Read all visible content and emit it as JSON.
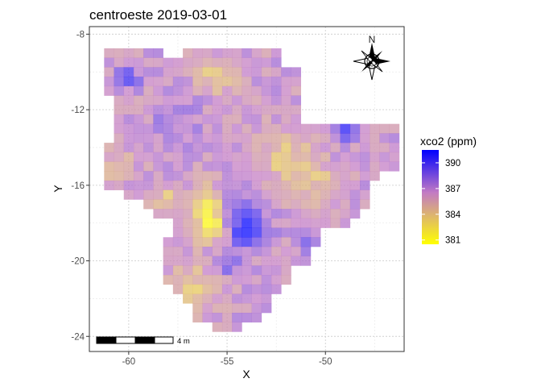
{
  "chart_data": {
    "type": "heatmap",
    "title": "centroeste 2019-03-01",
    "xlabel": "X",
    "ylabel": "Y",
    "xlim": [
      -62.0,
      -46.0
    ],
    "ylim": [
      -24.8,
      -7.6
    ],
    "x_ticks": [
      -60,
      -55,
      -50
    ],
    "x_tick_labels": [
      "-60",
      "-55",
      "-50"
    ],
    "y_ticks": [
      -8,
      -12,
      -16,
      -20,
      -24
    ],
    "y_tick_labels": [
      "-8",
      "-12",
      "-16",
      "-20",
      "-24"
    ],
    "grid": true,
    "legend": {
      "title": "xco2 (ppm)",
      "position": "right",
      "min": 380.5,
      "max": 391.5,
      "ticks": [
        381,
        384,
        387,
        390
      ],
      "tick_labels": [
        "381",
        "384",
        "387",
        "390"
      ],
      "colors": [
        "#ffff00",
        "#c27ac4",
        "#0000ff"
      ]
    },
    "cell_size_deg": 0.5,
    "region_rows": [
      {
        "y": -9.0,
        "spans": [
          [
            -61.0,
            -58.5
          ],
          [
            -57.0,
            -52.5
          ]
        ]
      },
      {
        "y": -9.5,
        "spans": [
          [
            -61.0,
            -52.5
          ]
        ]
      },
      {
        "y": -10.0,
        "spans": [
          [
            -61.0,
            -51.5
          ]
        ]
      },
      {
        "y": -10.5,
        "spans": [
          [
            -61.0,
            -51.5
          ]
        ]
      },
      {
        "y": -11.0,
        "spans": [
          [
            -61.0,
            -51.5
          ]
        ]
      },
      {
        "y": -11.5,
        "spans": [
          [
            -60.5,
            -51.5
          ]
        ]
      },
      {
        "y": -12.0,
        "spans": [
          [
            -60.5,
            -51.5
          ]
        ]
      },
      {
        "y": -12.5,
        "spans": [
          [
            -60.5,
            -51.5
          ]
        ]
      },
      {
        "y": -13.0,
        "spans": [
          [
            -60.5,
            -48.0
          ],
          [
            -47.5,
            -46.5
          ]
        ]
      },
      {
        "y": -13.5,
        "spans": [
          [
            -60.5,
            -46.5
          ]
        ]
      },
      {
        "y": -14.0,
        "spans": [
          [
            -61.0,
            -46.5
          ]
        ]
      },
      {
        "y": -14.5,
        "spans": [
          [
            -61.0,
            -46.5
          ]
        ]
      },
      {
        "y": -15.0,
        "spans": [
          [
            -61.0,
            -46.5
          ]
        ]
      },
      {
        "y": -15.5,
        "spans": [
          [
            -61.0,
            -47.5
          ]
        ]
      },
      {
        "y": -16.0,
        "spans": [
          [
            -61.0,
            -48.0
          ]
        ]
      },
      {
        "y": -16.5,
        "spans": [
          [
            -60.0,
            -48.0
          ]
        ]
      },
      {
        "y": -17.0,
        "spans": [
          [
            -59.0,
            -48.0
          ]
        ]
      },
      {
        "y": -17.5,
        "spans": [
          [
            -58.5,
            -48.5
          ]
        ]
      },
      {
        "y": -18.0,
        "spans": [
          [
            -57.5,
            -49.0
          ]
        ]
      },
      {
        "y": -18.5,
        "spans": [
          [
            -57.5,
            -50.5
          ]
        ]
      },
      {
        "y": -19.0,
        "spans": [
          [
            -58.0,
            -50.5
          ]
        ]
      },
      {
        "y": -19.5,
        "spans": [
          [
            -58.0,
            -51.0
          ]
        ]
      },
      {
        "y": -20.0,
        "spans": [
          [
            -58.0,
            -51.0
          ]
        ]
      },
      {
        "y": -20.5,
        "spans": [
          [
            -58.0,
            -52.0
          ]
        ]
      },
      {
        "y": -21.0,
        "spans": [
          [
            -58.0,
            -52.0
          ]
        ]
      },
      {
        "y": -21.5,
        "spans": [
          [
            -57.5,
            -52.5
          ]
        ]
      },
      {
        "y": -22.0,
        "spans": [
          [
            -57.0,
            -53.0
          ]
        ]
      },
      {
        "y": -22.5,
        "spans": [
          [
            -56.5,
            -53.0
          ]
        ]
      },
      {
        "y": -23.0,
        "spans": [
          [
            -56.5,
            -53.5
          ]
        ]
      },
      {
        "y": -23.5,
        "spans": [
          [
            -55.5,
            -54.5
          ]
        ]
      }
    ],
    "base_value": 386.5,
    "value_features": [
      {
        "x": -54.0,
        "y": -18.2,
        "radius": 1.1,
        "delta": 5.0
      },
      {
        "x": -54.8,
        "y": -17.0,
        "radius": 1.0,
        "delta": 2.5
      },
      {
        "x": -55.8,
        "y": -18.0,
        "radius": 0.9,
        "delta": -5.0
      },
      {
        "x": -55.8,
        "y": -16.8,
        "radius": 0.9,
        "delta": -3.5
      },
      {
        "x": -56.8,
        "y": -21.5,
        "radius": 1.2,
        "delta": -3.0
      },
      {
        "x": -55.5,
        "y": -10.2,
        "radius": 1.0,
        "delta": -3.0
      },
      {
        "x": -57.5,
        "y": -12.5,
        "radius": 1.3,
        "delta": 1.5
      },
      {
        "x": -60.0,
        "y": -10.3,
        "radius": 0.6,
        "delta": 3.5
      },
      {
        "x": -52.0,
        "y": -14.5,
        "radius": 1.5,
        "delta": -2.5
      },
      {
        "x": -50.5,
        "y": -16.0,
        "radius": 1.2,
        "delta": -2.0
      },
      {
        "x": -49.0,
        "y": -13.2,
        "radius": 0.6,
        "delta": 3.5
      },
      {
        "x": -55.0,
        "y": -20.2,
        "radius": 0.5,
        "delta": 3.0
      },
      {
        "x": -51.0,
        "y": -19.0,
        "radius": 0.5,
        "delta": 2.5
      },
      {
        "x": -60.5,
        "y": -15.0,
        "radius": 1.0,
        "delta": -1.5
      },
      {
        "x": -58.0,
        "y": -16.8,
        "radius": 0.7,
        "delta": -2.5
      }
    ],
    "annotations": {
      "north_arrow_label": "N",
      "scale_bar_label": "4 m"
    }
  }
}
